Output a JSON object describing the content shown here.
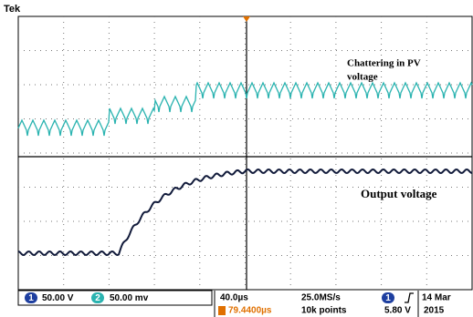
{
  "header": {
    "brand": "Tek"
  },
  "annotations": {
    "pv_line1": "Chattering in PV",
    "pv_line2": "voltage",
    "output": "Output voltage"
  },
  "status": {
    "ch1_badge": "1",
    "ch1_scale": "50.00 V",
    "ch2_badge": "2",
    "ch2_scale": "50.00 mv",
    "timebase": "40.0µs",
    "trigger_position": "79.4400µs",
    "sample_rate": "25.0MS/s",
    "record_length": "10k points",
    "trigger_badge": "1",
    "trigger_level": "5.80 V",
    "date": "14 Mar",
    "year": "2015"
  }
}
